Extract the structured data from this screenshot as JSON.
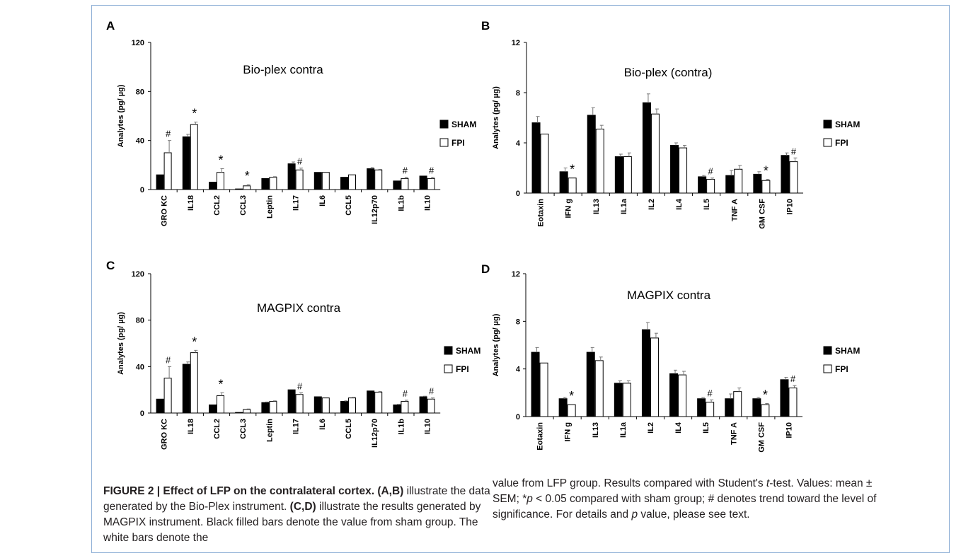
{
  "figure": {
    "caption": {
      "label": "FIGURE 2 | Effect of LFP on the contralateral cortex.",
      "ab_ref": "(A,B)",
      "ab_text": "illustrate the data generated by the Bio-Plex instrument.",
      "cd_ref": "(C,D)",
      "cd_text": "illustrate the results generated by MAGPIX instrument. Black filled bars denote the value from sham group. The white bars denote the",
      "right_1": "value from LFP group. Results compared with Student's ",
      "t_italic": "t",
      "right_1b": "-test.",
      "right_2a": "Values: mean ± SEM; *",
      "p_italic": "p",
      "right_2b": " < 0.05 compared with sham group; # denotes trend toward the level of significance. For details and ",
      "p_italic2": "p",
      "right_2c": " value, please see text."
    }
  },
  "colors": {
    "sham": "#000000",
    "fpi": "#ffffff",
    "stroke": "#000000",
    "frame": "#8fb0d6"
  },
  "chart_data": [
    {
      "panel": "A",
      "type": "bar",
      "title": "Bio-plex contra",
      "ylabel": "Analytes (pg/ µg)",
      "ylim": [
        0,
        120
      ],
      "yticks": [
        "0",
        "40",
        "80",
        "120"
      ],
      "categories": [
        "GRO KC",
        "IL18",
        "CCL2",
        "CCL3",
        "Leptin",
        "IL17",
        "IL6",
        "CCL5",
        "IL12p70",
        "IL1b",
        "IL10"
      ],
      "series": [
        {
          "name": "SHAM",
          "values": [
            12,
            43,
            6,
            0.5,
            9,
            21,
            14,
            10,
            17,
            7,
            11
          ],
          "errors": [
            0,
            2,
            0,
            0,
            0,
            1.5,
            0,
            0,
            1,
            0,
            0
          ]
        },
        {
          "name": "FPI",
          "values": [
            30,
            53,
            14,
            3,
            10,
            16,
            14,
            12,
            16,
            9,
            9
          ],
          "errors": [
            10,
            2,
            3,
            1,
            0.5,
            1.5,
            0,
            0,
            0.5,
            1,
            1
          ]
        }
      ],
      "marks": [
        "#",
        "*",
        "*",
        "*",
        "",
        "#",
        "",
        "",
        "",
        "#",
        "#"
      ],
      "legend": [
        "SHAM",
        "FPI"
      ]
    },
    {
      "panel": "B",
      "type": "bar",
      "title": "Bio-plex (contra)",
      "ylabel": "Analytes (pg/ µg)",
      "ylim": [
        0,
        12
      ],
      "yticks": [
        "0",
        "4",
        "8",
        "12"
      ],
      "categories": [
        "Eotaxin",
        "IFN g",
        "IL13",
        "IL1a",
        "IL2",
        "IL4",
        "IL5",
        "TNF A",
        "GM CSF",
        "IP10"
      ],
      "series": [
        {
          "name": "SHAM",
          "values": [
            5.6,
            1.7,
            6.2,
            2.9,
            7.2,
            3.8,
            1.3,
            1.4,
            1.5,
            3.0
          ],
          "errors": [
            0.5,
            0.3,
            0.6,
            0.2,
            0.7,
            0.2,
            0.1,
            0.4,
            0.2,
            0.2
          ]
        },
        {
          "name": "FPI",
          "values": [
            4.7,
            1.2,
            5.1,
            2.9,
            6.3,
            3.6,
            1.1,
            1.9,
            1.0,
            2.5
          ],
          "errors": [
            0,
            0,
            0.3,
            0.3,
            0.4,
            0.2,
            0.1,
            0.3,
            0.1,
            0.3
          ]
        }
      ],
      "marks": [
        "",
        "*",
        "",
        "",
        "",
        "",
        "#",
        "",
        "*",
        "#"
      ],
      "legend": [
        "SHAM",
        "FPI"
      ]
    },
    {
      "panel": "C",
      "type": "bar",
      "title": "MAGPIX contra",
      "ylabel": "Analytes (pg/ µg)",
      "ylim": [
        0,
        120
      ],
      "yticks": [
        "0",
        "40",
        "80",
        "120"
      ],
      "categories": [
        "GRO KC",
        "IL18",
        "CCL2",
        "CCL3",
        "Leptin",
        "IL17",
        "IL6",
        "CCL5",
        "IL12p70",
        "IL1b",
        "IL10"
      ],
      "series": [
        {
          "name": "SHAM",
          "values": [
            12,
            42,
            7,
            0.5,
            9,
            20,
            14,
            10,
            19,
            7,
            14
          ],
          "errors": [
            0,
            2,
            0,
            0,
            0.5,
            0,
            0,
            0.5,
            0,
            0.5,
            0.5
          ]
        },
        {
          "name": "FPI",
          "values": [
            30,
            52,
            15,
            3,
            10,
            16,
            13,
            13,
            18,
            10,
            12
          ],
          "errors": [
            10,
            2,
            2.5,
            0.5,
            0.5,
            1.5,
            0,
            0.5,
            0.5,
            1,
            1
          ]
        }
      ],
      "marks": [
        "#",
        "*",
        "*",
        "",
        "",
        "#",
        "",
        "",
        "",
        "#",
        "#"
      ],
      "legend": [
        "SHAM",
        "FPI"
      ]
    },
    {
      "panel": "D",
      "type": "bar",
      "title": "MAGPIX contra",
      "ylabel": "Analytes (pg/ µg)",
      "ylim": [
        0,
        12
      ],
      "yticks": [
        "0",
        "4",
        "8",
        "12"
      ],
      "categories": [
        "Eotaxin",
        "IFN g",
        "IL13",
        "IL1a",
        "IL2",
        "IL4",
        "IL5",
        "TNF A",
        "GM CSF",
        "IP10"
      ],
      "series": [
        {
          "name": "SHAM",
          "values": [
            5.4,
            1.5,
            5.4,
            2.8,
            7.3,
            3.6,
            1.5,
            1.5,
            1.5,
            3.1
          ],
          "errors": [
            0.4,
            0.1,
            0.4,
            0.2,
            0.6,
            0.3,
            0.1,
            0.4,
            0.1,
            0.2
          ]
        },
        {
          "name": "FPI",
          "values": [
            4.5,
            1.0,
            4.7,
            2.8,
            6.6,
            3.5,
            1.2,
            2.1,
            1.0,
            2.4
          ],
          "errors": [
            0,
            0,
            0.3,
            0.2,
            0.4,
            0.3,
            0.2,
            0.3,
            0.1,
            0.2
          ]
        }
      ],
      "marks": [
        "",
        "*",
        "",
        "",
        "",
        "",
        "#",
        "",
        "*",
        "#"
      ],
      "legend": [
        "SHAM",
        "FPI"
      ]
    }
  ]
}
